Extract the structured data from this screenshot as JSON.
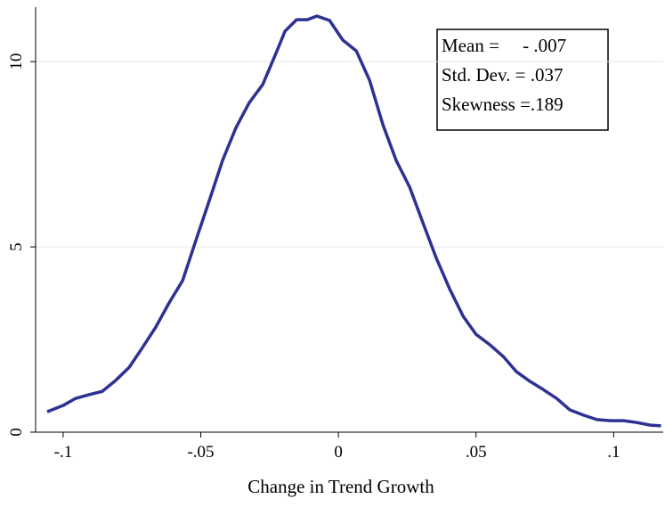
{
  "chart_data": {
    "type": "line",
    "x_label": "Change in Trend Growth",
    "annotations": [
      "Mean =     - .007",
      "Std. Dev. = .037",
      "Skewness =.189"
    ],
    "xlim": [
      -0.11,
      0.118
    ],
    "ylim": [
      0,
      11.47
    ],
    "xticks": [
      {
        "value": -0.1,
        "label": "-.1"
      },
      {
        "value": -0.05,
        "label": "-.05"
      },
      0,
      {
        "value": 0.05,
        "label": ".05"
      },
      {
        "value": 0.1,
        "label": ".1"
      }
    ],
    "yticks": [
      0,
      5,
      10
    ],
    "grid": true,
    "series": [
      {
        "color": "#2e3192",
        "x": [
          -0.1058,
          -0.1,
          -0.0955,
          -0.0906,
          -0.0858,
          -0.081,
          -0.076,
          -0.0712,
          -0.0663,
          -0.0615,
          -0.0566,
          -0.0518,
          -0.0469,
          -0.0421,
          -0.0372,
          -0.0324,
          -0.0275,
          -0.0227,
          -0.0194,
          -0.0152,
          -0.0113,
          -0.0078,
          -0.0032,
          0.0016,
          0.0065,
          0.0113,
          0.0162,
          0.021,
          0.0259,
          0.0307,
          0.0356,
          0.0405,
          0.0453,
          0.05,
          0.055,
          0.0599,
          0.0647,
          0.0696,
          0.0744,
          0.0793,
          0.0841,
          0.089,
          0.0939,
          0.0987,
          0.1036,
          0.1084,
          0.1133,
          0.1172
        ],
        "values": [
          0.55,
          0.72,
          0.91,
          1.01,
          1.1,
          1.39,
          1.75,
          2.28,
          2.84,
          3.49,
          4.09,
          5.17,
          6.25,
          7.33,
          8.22,
          8.89,
          9.38,
          10.22,
          10.82,
          11.13,
          11.13,
          11.23,
          11.11,
          10.58,
          10.29,
          9.5,
          8.29,
          7.33,
          6.61,
          5.65,
          4.69,
          3.85,
          3.13,
          2.64,
          2.36,
          2.04,
          1.63,
          1.37,
          1.15,
          0.91,
          0.6,
          0.46,
          0.34,
          0.31,
          0.31,
          0.26,
          0.19,
          0.17
        ]
      }
    ]
  }
}
